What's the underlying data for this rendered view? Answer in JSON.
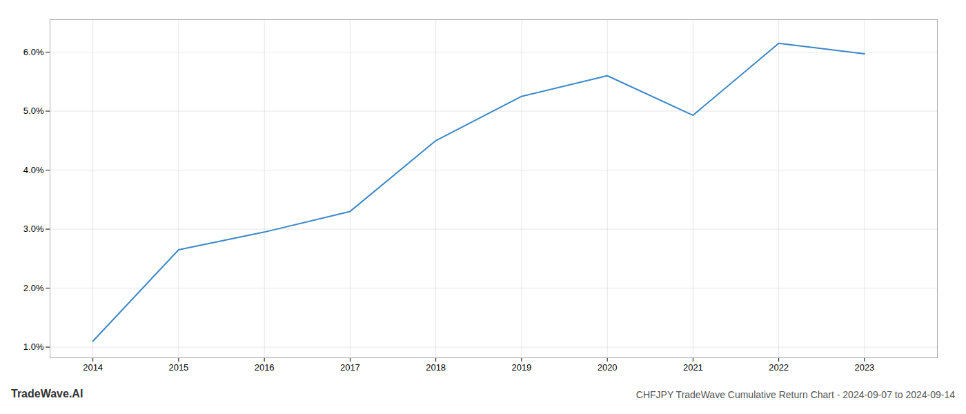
{
  "chart_data": {
    "type": "line",
    "title": "CHFJPY TradeWave Cumulative Return Chart - 2024-09-07 to 2024-09-14",
    "annotations": [
      "TradeWave.AI"
    ],
    "x": [
      2014,
      2015,
      2016,
      2017,
      2018,
      2019,
      2020,
      2021,
      2022,
      2023
    ],
    "values": [
      1.1,
      2.65,
      2.95,
      3.3,
      4.5,
      5.25,
      5.6,
      4.93,
      6.15,
      5.97
    ],
    "color": "#3a87c8",
    "xlim": [
      2013.5,
      2023.85
    ],
    "ylim": [
      0.82,
      6.55
    ],
    "xticks": [
      2014,
      2015,
      2016,
      2017,
      2018,
      2019,
      2020,
      2021,
      2022,
      2023
    ],
    "yticks": [
      {
        "value": 1.0,
        "label": "1.0%"
      },
      {
        "value": 2.0,
        "label": "2.0%"
      },
      {
        "value": 3.0,
        "label": "3.0%"
      },
      {
        "value": 4.0,
        "label": "4.0%"
      },
      {
        "value": 5.0,
        "label": "5.0%"
      },
      {
        "value": 6.0,
        "label": "6.0%"
      }
    ],
    "grid": true
  }
}
